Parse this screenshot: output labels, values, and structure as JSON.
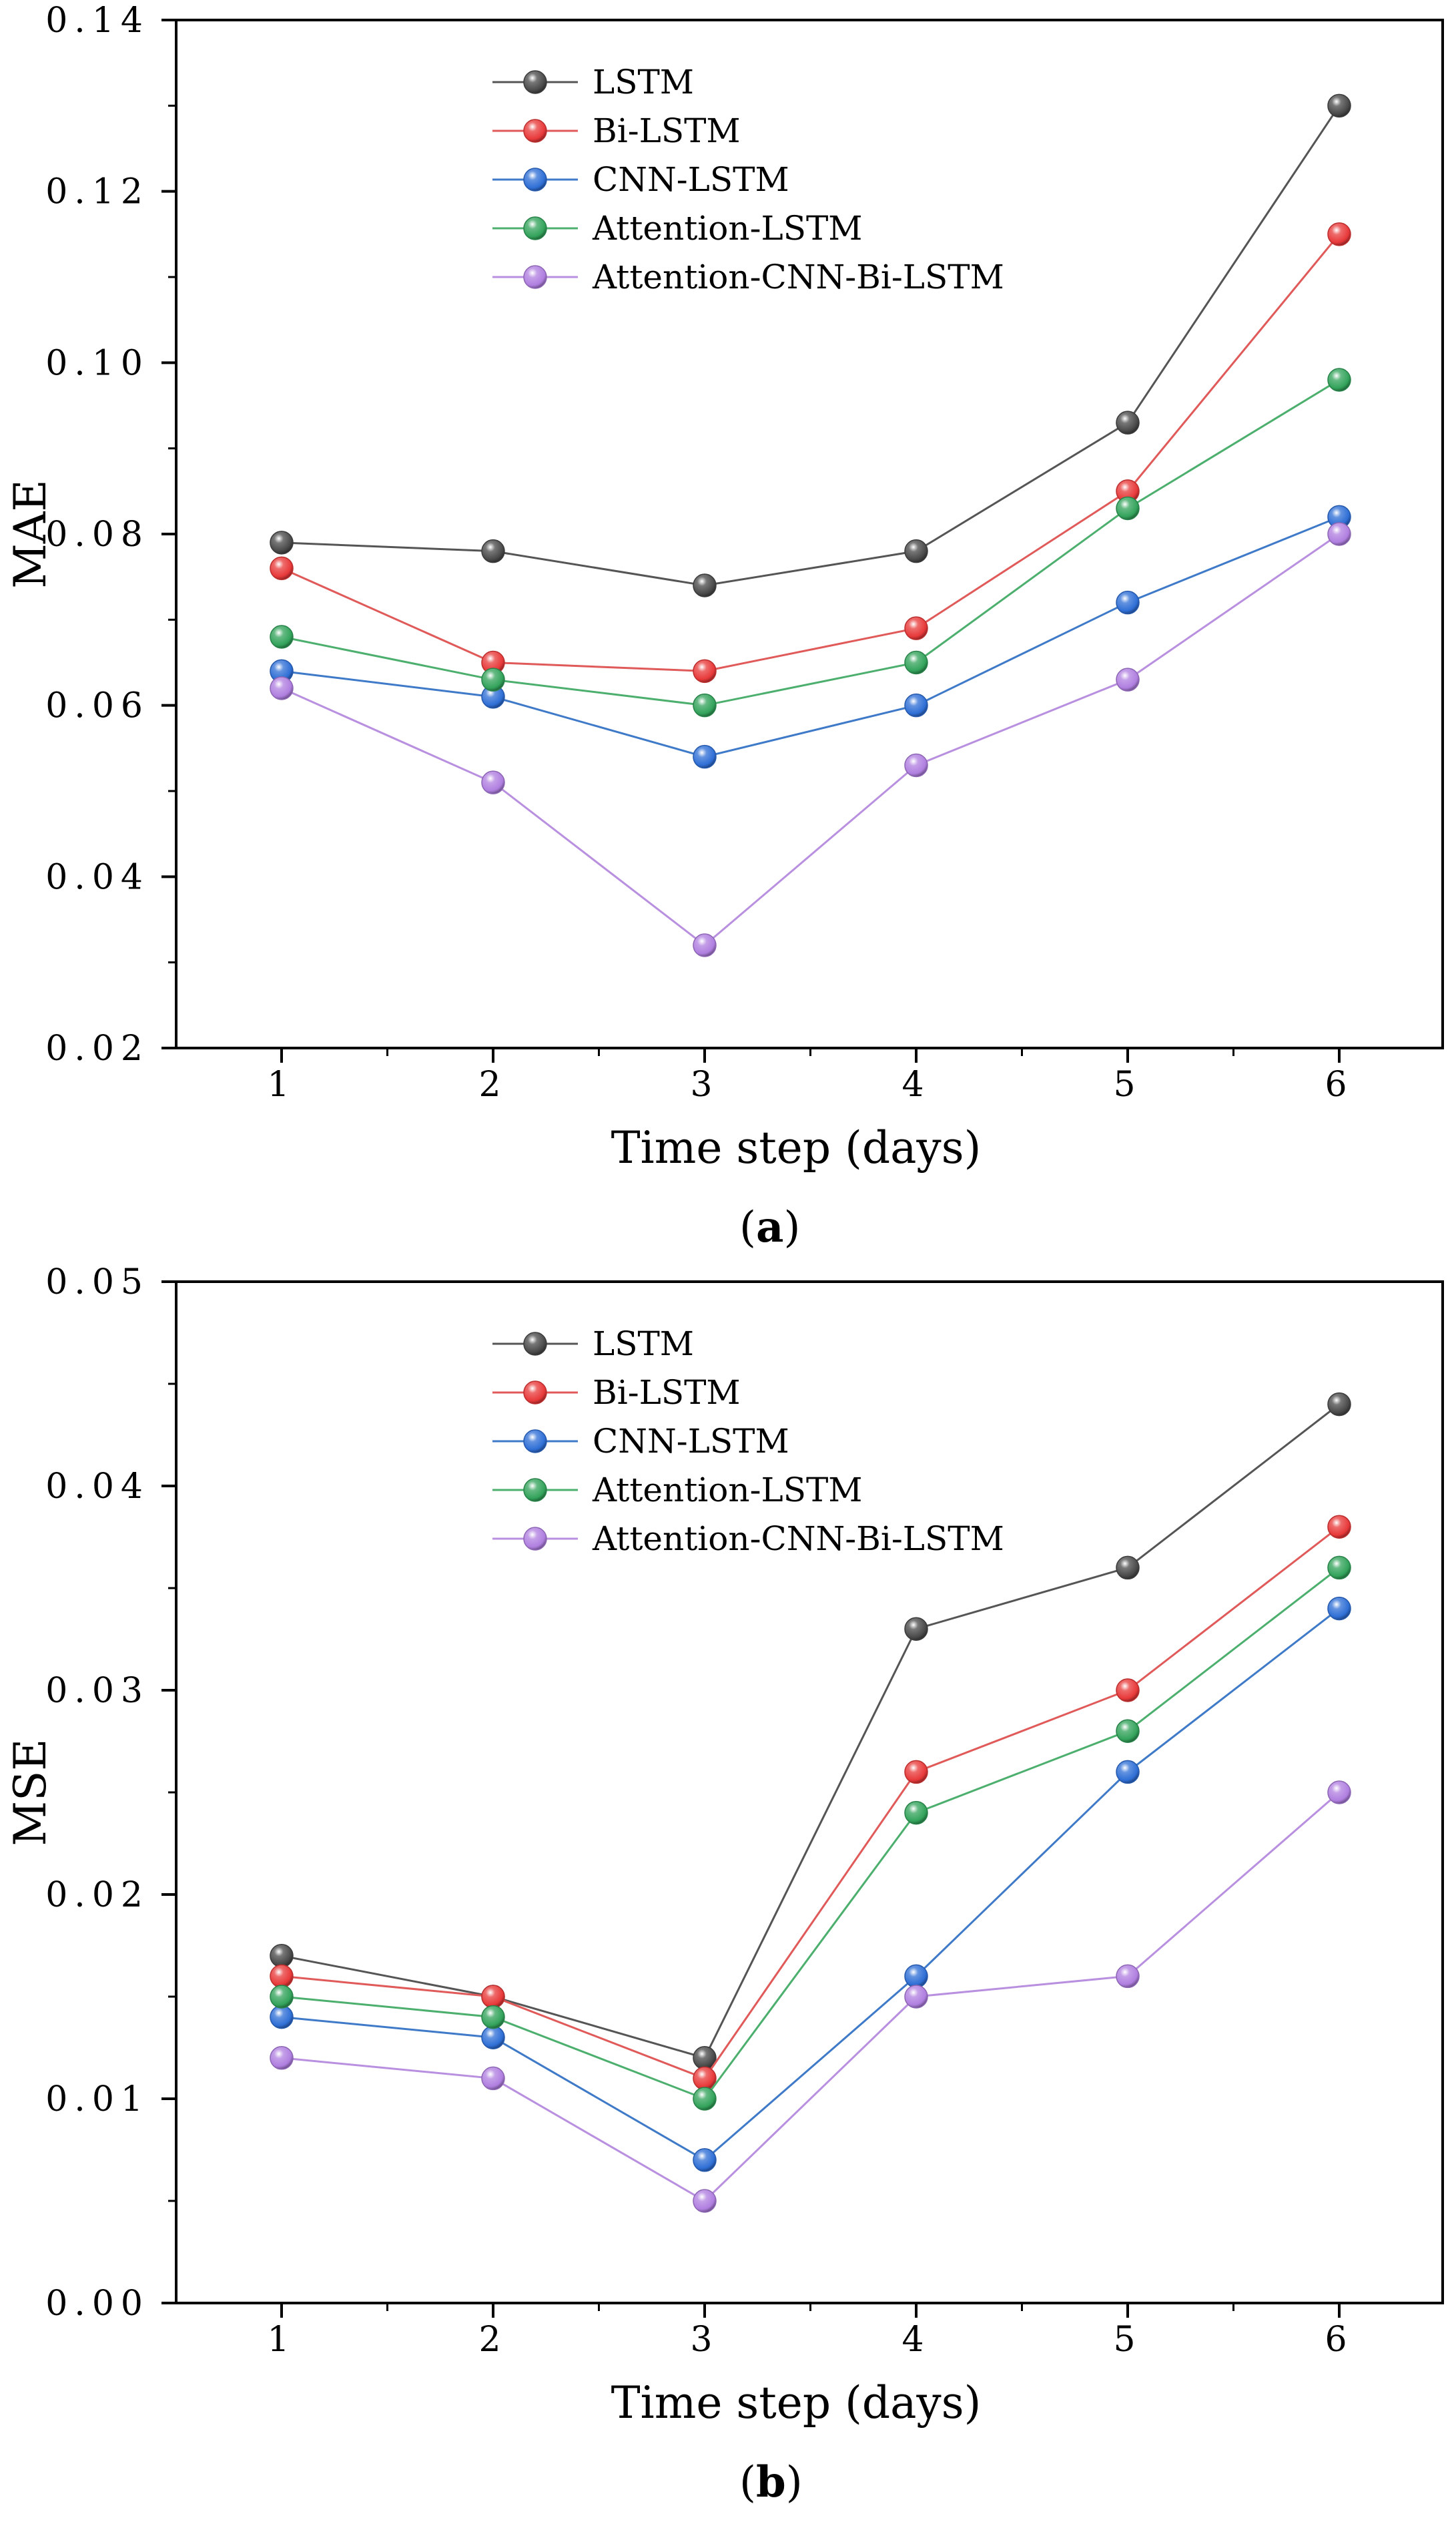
{
  "chart_data": [
    {
      "type": "line",
      "panel_label": "a",
      "xlabel": "Time step (days)",
      "ylabel": "MAE",
      "x": [
        1,
        2,
        3,
        4,
        5,
        6
      ],
      "xticks": [
        "1",
        "2",
        "3",
        "4",
        "5",
        "6"
      ],
      "ylim": [
        0.02,
        0.14
      ],
      "yticks": [
        "0.02",
        "0.04",
        "0.06",
        "0.08",
        "0.10",
        "0.12",
        "0.14"
      ],
      "legend_position": "top-center",
      "series": [
        {
          "name": "LSTM",
          "color": "#4a4a4a",
          "line_color": "#555555",
          "values": [
            0.079,
            0.078,
            0.074,
            0.078,
            0.093,
            0.13
          ]
        },
        {
          "name": "Bi-LSTM",
          "color": "#e8393a",
          "line_color": "#e05a5a",
          "values": [
            0.076,
            0.065,
            0.064,
            0.069,
            0.085,
            0.115
          ]
        },
        {
          "name": "CNN-LSTM",
          "color": "#2f6fd6",
          "line_color": "#3f7ac8",
          "values": [
            0.064,
            0.061,
            0.054,
            0.06,
            0.072,
            0.082
          ]
        },
        {
          "name": "Attention-LSTM",
          "color": "#33a35b",
          "line_color": "#4caf6e",
          "values": [
            0.068,
            0.063,
            0.06,
            0.065,
            0.083,
            0.098
          ]
        },
        {
          "name": "Attention-CNN-Bi-LSTM",
          "color": "#b07fe0",
          "line_color": "#b990e0",
          "values": [
            0.062,
            0.051,
            0.032,
            0.053,
            0.063,
            0.08
          ]
        }
      ]
    },
    {
      "type": "line",
      "panel_label": "b",
      "xlabel": "Time step (days)",
      "ylabel": "MSE",
      "x": [
        1,
        2,
        3,
        4,
        5,
        6
      ],
      "xticks": [
        "1",
        "2",
        "3",
        "4",
        "5",
        "6"
      ],
      "ylim": [
        0.0,
        0.05
      ],
      "yticks": [
        "0.00",
        "0.01",
        "0.02",
        "0.03",
        "0.04",
        "0.05"
      ],
      "legend_position": "top-center",
      "series": [
        {
          "name": "LSTM",
          "color": "#4a4a4a",
          "line_color": "#555555",
          "values": [
            0.017,
            0.015,
            0.012,
            0.033,
            0.036,
            0.044
          ]
        },
        {
          "name": "Bi-LSTM",
          "color": "#e8393a",
          "line_color": "#e05a5a",
          "values": [
            0.016,
            0.015,
            0.011,
            0.026,
            0.03,
            0.038
          ]
        },
        {
          "name": "CNN-LSTM",
          "color": "#2f6fd6",
          "line_color": "#3f7ac8",
          "values": [
            0.014,
            0.013,
            0.007,
            0.016,
            0.026,
            0.034
          ]
        },
        {
          "name": "Attention-LSTM",
          "color": "#33a35b",
          "line_color": "#4caf6e",
          "values": [
            0.015,
            0.014,
            0.01,
            0.024,
            0.028,
            0.036
          ]
        },
        {
          "name": "Attention-CNN-Bi-LSTM",
          "color": "#b07fe0",
          "line_color": "#b990e0",
          "values": [
            0.012,
            0.011,
            0.005,
            0.015,
            0.016,
            0.025
          ]
        }
      ]
    }
  ]
}
